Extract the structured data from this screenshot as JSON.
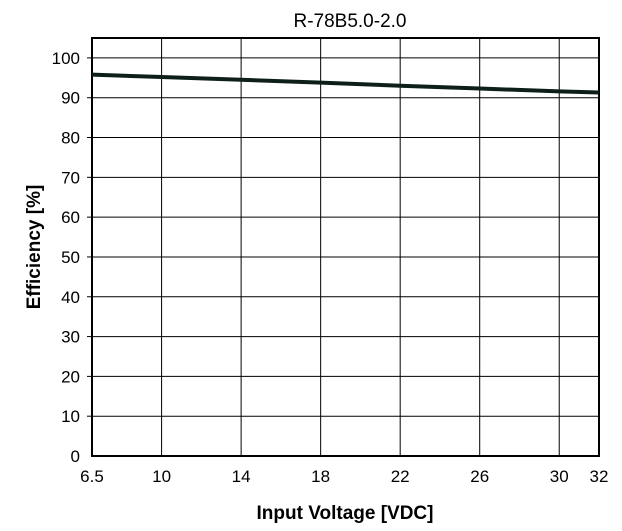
{
  "chart_data": {
    "type": "line",
    "title": "R-78B5.0-2.0",
    "xlabel": "Input Voltage [VDC]",
    "ylabel": "Efficiency [%]",
    "xlim": [
      6.5,
      32
    ],
    "ylim": [
      0,
      105
    ],
    "x_ticks": [
      6.5,
      10,
      14,
      18,
      22,
      26,
      30,
      32
    ],
    "x_tick_labels": [
      "6.5",
      "10",
      "14",
      "18",
      "22",
      "26",
      "30",
      "32"
    ],
    "y_ticks": [
      0,
      10,
      20,
      30,
      40,
      50,
      60,
      70,
      80,
      90,
      100
    ],
    "y_tick_labels": [
      "0",
      "10",
      "20",
      "30",
      "40",
      "50",
      "60",
      "70",
      "80",
      "90",
      "100"
    ],
    "grid": true,
    "series": [
      {
        "x": [
          6.5,
          10,
          14,
          18,
          22,
          26,
          30,
          32
        ],
        "y": [
          95.8,
          95.2,
          94.5,
          93.8,
          93.0,
          92.3,
          91.6,
          91.3
        ]
      }
    ],
    "colors": {
      "line": "#0d1f17",
      "grid": "#000000",
      "axis": "#000000"
    }
  }
}
